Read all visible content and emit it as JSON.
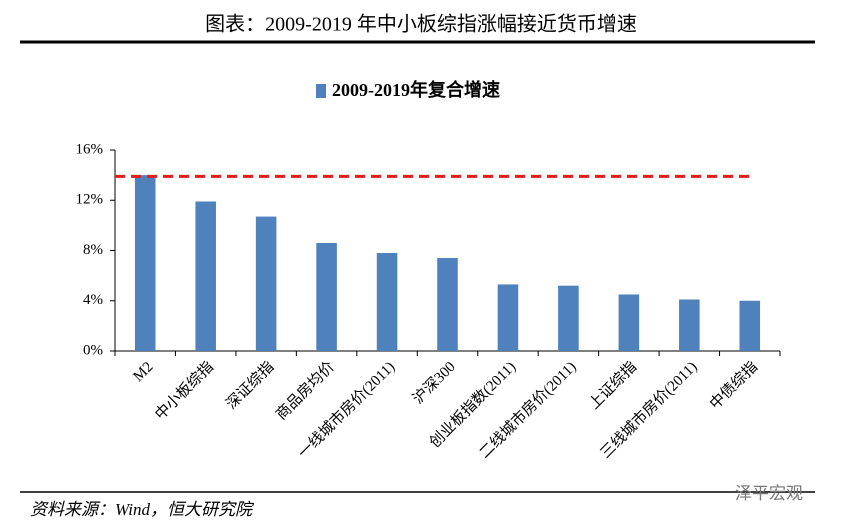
{
  "header": {
    "title": "图表：2009-2019 年中小板综指涨幅接近货币增速"
  },
  "chart_data": {
    "type": "bar",
    "categories": [
      "M2",
      "中小板综指",
      "深证综指",
      "商品房均价",
      "一线城市房价(2011)",
      "沪深300",
      "创业板指数(2011)",
      "二线城市房价(2011)",
      "上证综指",
      "三线城市房价(2011)",
      "中债综指"
    ],
    "series": [
      {
        "name": "2009-2019年复合增速",
        "color": "#4f81bd",
        "values": [
          14.0,
          11.9,
          10.7,
          8.6,
          7.8,
          7.4,
          5.3,
          5.2,
          4.5,
          4.1,
          4.0
        ]
      }
    ],
    "reference_line": {
      "value": 13.9,
      "color": "#e41c1c"
    },
    "ylim": [
      0,
      16
    ],
    "yticks": [
      {
        "value": 0,
        "label": "0%"
      },
      {
        "value": 4,
        "label": "4%"
      },
      {
        "value": 8,
        "label": "8%"
      },
      {
        "value": 12,
        "label": "12%"
      },
      {
        "value": 16,
        "label": "16%"
      }
    ],
    "legend": "top"
  },
  "footer": {
    "source": "资料来源：Wind，恒大研究院",
    "watermark": "泽平宏观"
  }
}
